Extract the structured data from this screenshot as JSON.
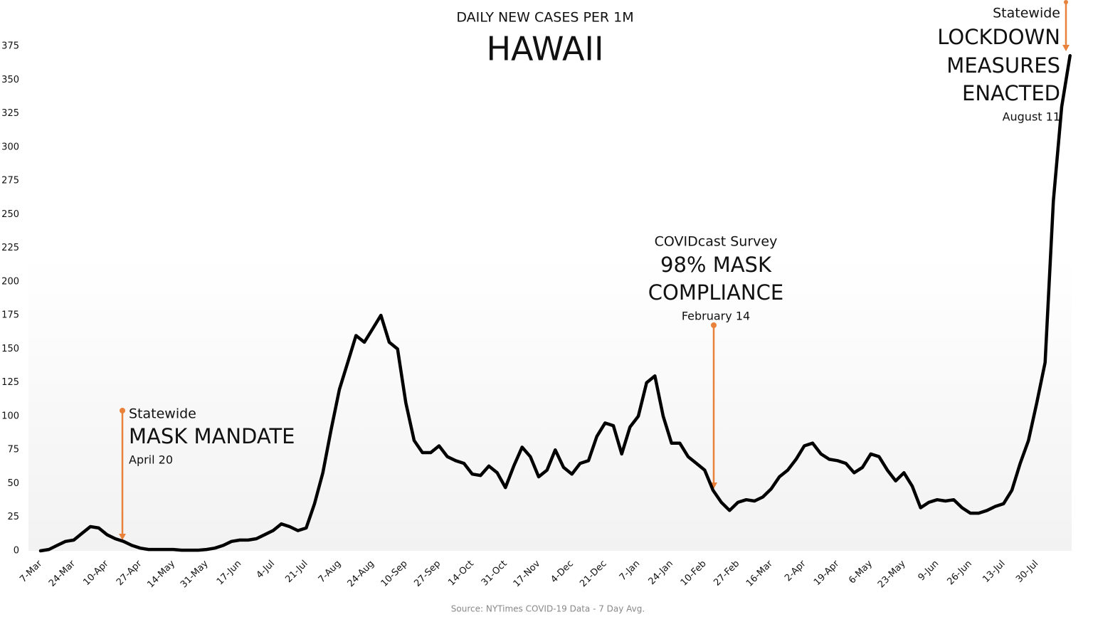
{
  "chart_data": {
    "type": "line",
    "title": "DAILY NEW CASES PER 1M",
    "subtitle": "HAWAII",
    "source": "Source: NYTimes COVID-19 Data - 7 Day Avg.",
    "categories": [
      "7-Mar",
      null,
      null,
      null,
      "24-Mar",
      null,
      null,
      null,
      "10-Apr",
      null,
      null,
      null,
      "27-Apr",
      null,
      null,
      null,
      "14-May",
      null,
      null,
      null,
      "31-May",
      null,
      null,
      null,
      "17-Jun",
      null,
      null,
      null,
      "4-Jul",
      null,
      null,
      null,
      "21-Jul",
      null,
      null,
      null,
      "7-Aug",
      null,
      null,
      null,
      "24-Aug",
      null,
      null,
      null,
      "10-Sep",
      null,
      null,
      null,
      "27-Sep",
      null,
      null,
      null,
      "14-Oct",
      null,
      null,
      null,
      "31-Oct",
      null,
      null,
      null,
      "17-Nov",
      null,
      null,
      null,
      "4-Dec",
      null,
      null,
      null,
      "21-Dec",
      null,
      null,
      null,
      "7-Jan",
      null,
      null,
      null,
      "24-Jan",
      null,
      null,
      null,
      "10-Feb",
      null,
      null,
      null,
      "27-Feb",
      null,
      null,
      null,
      "16-Mar",
      null,
      null,
      null,
      "2-Apr",
      null,
      null,
      null,
      "19-Apr",
      null,
      null,
      null,
      "6-May",
      null,
      null,
      null,
      "23-May",
      null,
      null,
      null,
      "9-Jun",
      null,
      null,
      null,
      "26-Jun",
      null,
      null,
      null,
      "13-Jul",
      null,
      null,
      null,
      "30-Jul",
      null,
      null,
      null,
      null
    ],
    "values": [
      0,
      1,
      4,
      7,
      8,
      13,
      18,
      17,
      12,
      9,
      7,
      4,
      2,
      1,
      1,
      1,
      1,
      0.5,
      0.5,
      0.5,
      1,
      2,
      4,
      7,
      8,
      8,
      9,
      12,
      15,
      20,
      18,
      15,
      17,
      35,
      58,
      90,
      120,
      140,
      160,
      155,
      165,
      175,
      155,
      150,
      110,
      82,
      73,
      73,
      78,
      70,
      67,
      65,
      57,
      56,
      63,
      58,
      47,
      63,
      77,
      70,
      55,
      60,
      75,
      62,
      57,
      65,
      67,
      85,
      95,
      93,
      72,
      92,
      100,
      125,
      130,
      100,
      80,
      80,
      70,
      65,
      60,
      45,
      36,
      30,
      36,
      38,
      37,
      40,
      46,
      55,
      60,
      68,
      78,
      80,
      72,
      68,
      67,
      65,
      58,
      62,
      72,
      70,
      60,
      52,
      58,
      48,
      32,
      36,
      38,
      37,
      38,
      32,
      28,
      28,
      30,
      33,
      35,
      45,
      65,
      82,
      110,
      140,
      260,
      330,
      368
    ],
    "color": "#000000",
    "ylim": [
      0,
      375
    ],
    "yticks": [
      0,
      25,
      50,
      75,
      100,
      125,
      150,
      175,
      200,
      225,
      250,
      275,
      300,
      325,
      350,
      375
    ],
    "grid": false,
    "annotations": [
      {
        "lead": "Statewide",
        "headline": [
          "MASK MANDATE"
        ],
        "date": "April 20"
      },
      {
        "lead": "COVIDcast Survey",
        "headline": [
          "98% MASK",
          "COMPLIANCE"
        ],
        "date": "February 14"
      },
      {
        "lead": "Statewide",
        "headline": [
          "LOCKDOWN",
          "MEASURES",
          "ENACTED"
        ],
        "date": "August 11"
      }
    ]
  }
}
